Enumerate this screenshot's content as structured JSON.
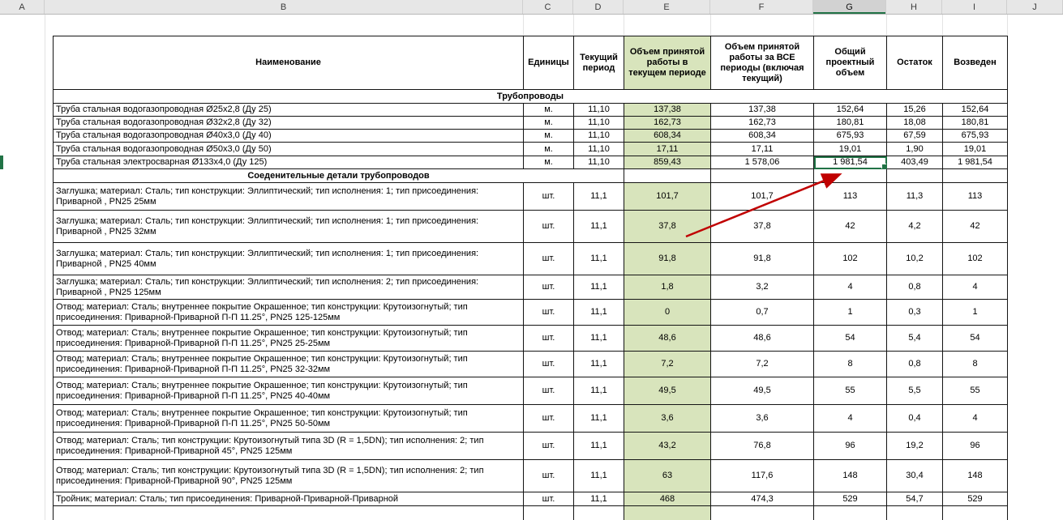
{
  "spreadsheet": {
    "column_letters": [
      "A",
      "B",
      "C",
      "D",
      "E",
      "F",
      "G",
      "H",
      "I",
      "J"
    ],
    "selected_column": "G",
    "accent_green": "#217346",
    "cell_fill_green": "#d8e4bc",
    "arrow_color": "#c00000"
  },
  "table": {
    "headers": {
      "name": "Наименование",
      "unit": "Единицы",
      "period": "Текущий период",
      "current": "Объем принятой работы в текущем периоде",
      "all_periods": "Объем принятой работы за ВСЕ периоды (включая текущий)",
      "total": "Общий проектный объем",
      "rest": "Остаток",
      "built": "Возведен"
    },
    "groups": [
      {
        "section": "Трубопроводы",
        "rows": [
          {
            "name": "Труба стальная водогазопроводная Ø25х2,8 (Ду 25)",
            "unit": "м.",
            "period": "11,10",
            "current": "137,38",
            "all_periods": "137,38",
            "total": "152,64",
            "rest": "15,26",
            "built": "152,64"
          },
          {
            "name": "Труба стальная водогазопроводная Ø32х2,8 (Ду 32)",
            "unit": "м.",
            "period": "11,10",
            "current": "162,73",
            "all_periods": "162,73",
            "total": "180,81",
            "rest": "18,08",
            "built": "180,81"
          },
          {
            "name": "Труба стальная водогазопроводная Ø40х3,0 (Ду 40)",
            "unit": "м.",
            "period": "11,10",
            "current": "608,34",
            "all_periods": "608,34",
            "total": "675,93",
            "rest": "67,59",
            "built": "675,93"
          },
          {
            "name": "Труба стальная водогазопроводная Ø50х3,0 (Ду 50)",
            "unit": "м.",
            "period": "11,10",
            "current": "17,11",
            "all_periods": "17,11",
            "total": "19,01",
            "rest": "1,90",
            "built": "19,01"
          },
          {
            "name": "Труба стальная электросварная Ø133х4,0 (Ду 125)",
            "unit": "м.",
            "period": "11,10",
            "current": "859,43",
            "all_periods": "1 578,06",
            "total": "1 981,54",
            "rest": "403,49",
            "built": "1 981,54",
            "selected_key": "total"
          }
        ]
      },
      {
        "section": "Соеденительные детали трубопроводов",
        "rows": [
          {
            "name": "Заглушка; материал: Сталь; тип конструкции: Эллиптический; тип исполнения: 1; тип присоединения: Приварной , PN25 25мм",
            "unit": "шт.",
            "period": "11,1",
            "current": "101,7",
            "all_periods": "101,7",
            "total": "113",
            "rest": "11,3",
            "built": "113"
          },
          {
            "name": "Заглушка; материал: Сталь; тип конструкции: Эллиптический; тип исполнения: 1; тип присоединения: Приварной , PN25 32мм",
            "unit": "шт.",
            "period": "11,1",
            "current": "37,8",
            "all_periods": "37,8",
            "total": "42",
            "rest": "4,2",
            "built": "42"
          },
          {
            "name": "Заглушка; материал: Сталь; тип конструкции: Эллиптический; тип исполнения: 1; тип присоединения: Приварной , PN25 40мм",
            "unit": "шт.",
            "period": "11,1",
            "current": "91,8",
            "all_periods": "91,8",
            "total": "102",
            "rest": "10,2",
            "built": "102"
          },
          {
            "name": "Заглушка; материал: Сталь; тип конструкции: Эллиптический; тип исполнения: 2; тип присоединения: Приварной , PN25 125мм",
            "unit": "шт.",
            "period": "11,1",
            "current": "1,8",
            "all_periods": "3,2",
            "total": "4",
            "rest": "0,8",
            "built": "4"
          },
          {
            "name": "Отвод; материал: Сталь; внутреннее покрытие Окрашенное; тип конструкции: Крутоизогнутый; тип присоединения: Приварной-Приварной П-П 11.25°, PN25 125-125мм",
            "unit": "шт.",
            "period": "11,1",
            "current": "0",
            "all_periods": "0,7",
            "total": "1",
            "rest": "0,3",
            "built": "1"
          },
          {
            "name": "Отвод; материал: Сталь; внутреннее покрытие Окрашенное; тип конструкции: Крутоизогнутый; тип присоединения: Приварной-Приварной П-П 11.25°, PN25 25-25мм",
            "unit": "шт.",
            "period": "11,1",
            "current": "48,6",
            "all_periods": "48,6",
            "total": "54",
            "rest": "5,4",
            "built": "54"
          },
          {
            "name": "Отвод; материал: Сталь; внутреннее покрытие Окрашенное; тип конструкции: Крутоизогнутый; тип присоединения: Приварной-Приварной П-П 11.25°, PN25 32-32мм",
            "unit": "шт.",
            "period": "11,1",
            "current": "7,2",
            "all_periods": "7,2",
            "total": "8",
            "rest": "0,8",
            "built": "8"
          },
          {
            "name": "Отвод; материал: Сталь; внутреннее покрытие Окрашенное; тип конструкции: Крутоизогнутый; тип присоединения: Приварной-Приварной П-П 11.25°, PN25 40-40мм",
            "unit": "шт.",
            "period": "11,1",
            "current": "49,5",
            "all_periods": "49,5",
            "total": "55",
            "rest": "5,5",
            "built": "55"
          },
          {
            "name": "Отвод; материал: Сталь; внутреннее покрытие Окрашенное; тип конструкции: Крутоизогнутый; тип присоединения: Приварной-Приварной П-П 11.25°, PN25 50-50мм",
            "unit": "шт.",
            "period": "11,1",
            "current": "3,6",
            "all_periods": "3,6",
            "total": "4",
            "rest": "0,4",
            "built": "4"
          },
          {
            "name": "Отвод; материал: Сталь; тип конструкции: Крутоизогнутый типа 3D (R = 1,5DN); тип исполнения: 2; тип присоединения: Приварной-Приварной  45°, PN25 125мм",
            "unit": "шт.",
            "period": "11,1",
            "current": "43,2",
            "all_periods": "76,8",
            "total": "96",
            "rest": "19,2",
            "built": "96"
          },
          {
            "name": "Отвод; материал: Сталь; тип конструкции: Крутоизогнутый типа 3D (R = 1,5DN); тип исполнения: 2; тип присоединения: Приварной-Приварной  90°, PN25 125мм",
            "unit": "шт.",
            "period": "11,1",
            "current": "63",
            "all_periods": "117,6",
            "total": "148",
            "rest": "30,4",
            "built": "148"
          },
          {
            "name": "Тройник; материал: Сталь; тип присоединения: Приварной-Приварной-Приварной",
            "unit": "шт.",
            "period": "11,1",
            "current": "468",
            "all_periods": "474,3",
            "total": "529",
            "rest": "54,7",
            "built": "529"
          }
        ]
      }
    ]
  },
  "selection": {
    "cell_column": "G",
    "cell_value": "1 981,54"
  }
}
